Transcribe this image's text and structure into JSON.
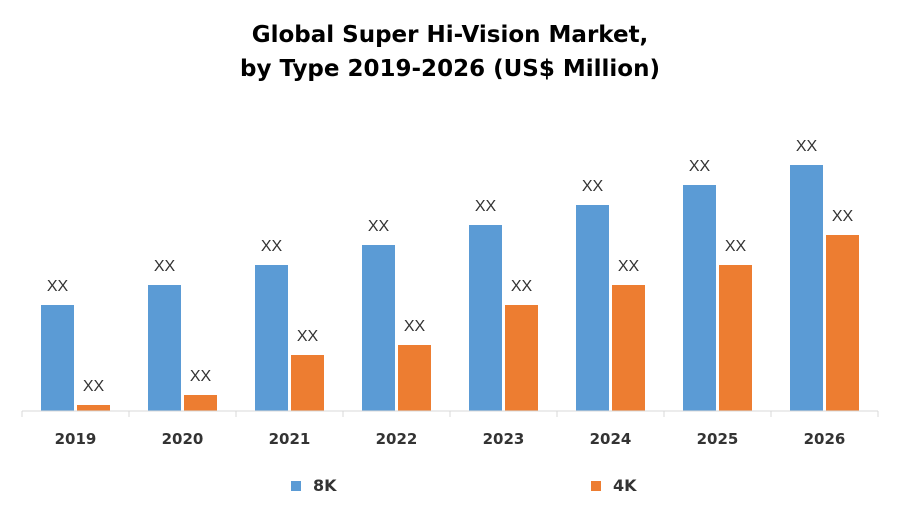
{
  "chart_data": {
    "type": "bar",
    "title": "Global Super Hi-Vision Market,",
    "subtitle": "by Type 2019-2026 (US$ Million)",
    "xlabel": "",
    "ylabel": "",
    "categories": [
      "2019",
      "2020",
      "2021",
      "2022",
      "2023",
      "2024",
      "2025",
      "2026"
    ],
    "series": [
      {
        "name": "8K",
        "color": "#5b9bd5",
        "values": [
          106,
          126,
          146,
          166,
          186,
          206,
          226,
          246
        ],
        "data_labels": [
          "XX",
          "XX",
          "XX",
          "XX",
          "XX",
          "XX",
          "XX",
          "XX"
        ]
      },
      {
        "name": "4K",
        "color": "#ed7d31",
        "values": [
          6,
          16,
          56,
          66,
          106,
          126,
          146,
          176
        ],
        "data_labels": [
          "XX",
          "XX",
          "XX",
          "XX",
          "XX",
          "XX",
          "XX",
          "XX"
        ]
      }
    ],
    "ylim": [
      0,
      300
    ],
    "grid": false,
    "legend_position": "bottom"
  }
}
